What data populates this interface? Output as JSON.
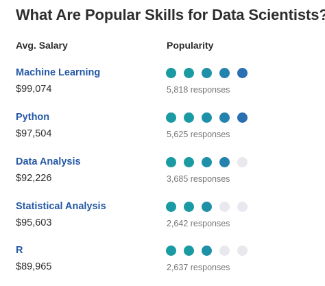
{
  "title": "What Are Popular Skills for Data Scientists?",
  "headers": {
    "salary": "Avg. Salary",
    "popularity": "Popularity"
  },
  "colors": {
    "filled": [
      "#1a9aa3",
      "#1a9aa3",
      "#1e91a8",
      "#2482ae",
      "#2b6fb3"
    ],
    "empty": "#e8e8ee",
    "link": "#2559a6"
  },
  "skills": [
    {
      "name": "Machine Learning",
      "salary": "$99,074",
      "responses": "5,818 responses",
      "popularity": 5
    },
    {
      "name": "Python",
      "salary": "$97,504",
      "responses": "5,625 responses",
      "popularity": 5
    },
    {
      "name": "Data Analysis",
      "salary": "$92,226",
      "responses": "3,685 responses",
      "popularity": 4
    },
    {
      "name": "Statistical Analysis",
      "salary": "$95,603",
      "responses": "2,642 responses",
      "popularity": 3
    },
    {
      "name": "R",
      "salary": "$89,965",
      "responses": "2,637 responses",
      "popularity": 3
    }
  ]
}
